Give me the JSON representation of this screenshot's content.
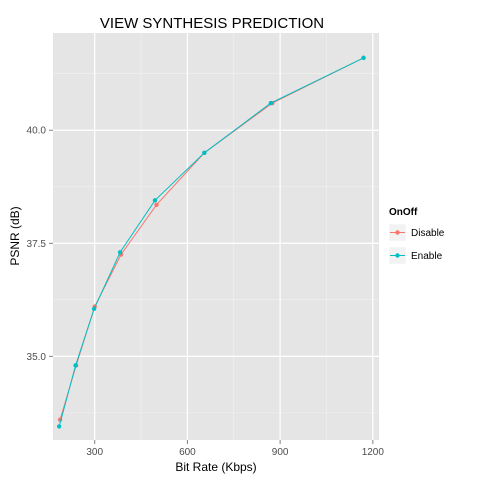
{
  "chart_data": {
    "type": "line",
    "title": "VIEW SYNTHESIS PREDICTION",
    "xlabel": "Bit Rate (Kbps)",
    "ylabel": "PSNR (dB)",
    "xlim": [
      165,
      1220
    ],
    "ylim": [
      33.15,
      42.15
    ],
    "x_ticks": [
      300,
      600,
      900,
      1200
    ],
    "y_ticks": [
      35.0,
      37.5,
      40.0
    ],
    "x_tick_labels": [
      "300",
      "600",
      "900",
      "1200"
    ],
    "y_tick_labels": [
      "35.0",
      "37.5",
      "40.0"
    ],
    "grid": true,
    "legend": {
      "title": "OnOff",
      "position": "right"
    },
    "series": [
      {
        "name": "Disable",
        "color": "#F8766D",
        "points": [
          {
            "x": 188,
            "y": 33.6
          },
          {
            "x": 240,
            "y": 34.8
          },
          {
            "x": 300,
            "y": 36.1
          },
          {
            "x": 385,
            "y": 37.25
          },
          {
            "x": 500,
            "y": 38.35
          },
          {
            "x": 655,
            "y": 39.5
          },
          {
            "x": 875,
            "y": 40.6
          },
          {
            "x": 1170,
            "y": 41.6
          }
        ]
      },
      {
        "name": "Enable",
        "color": "#00BFC4",
        "points": [
          {
            "x": 185,
            "y": 33.45
          },
          {
            "x": 238,
            "y": 34.8
          },
          {
            "x": 298,
            "y": 36.05
          },
          {
            "x": 382,
            "y": 37.3
          },
          {
            "x": 495,
            "y": 38.45
          },
          {
            "x": 655,
            "y": 39.5
          },
          {
            "x": 870,
            "y": 40.6
          },
          {
            "x": 1170,
            "y": 41.6
          }
        ]
      }
    ]
  }
}
